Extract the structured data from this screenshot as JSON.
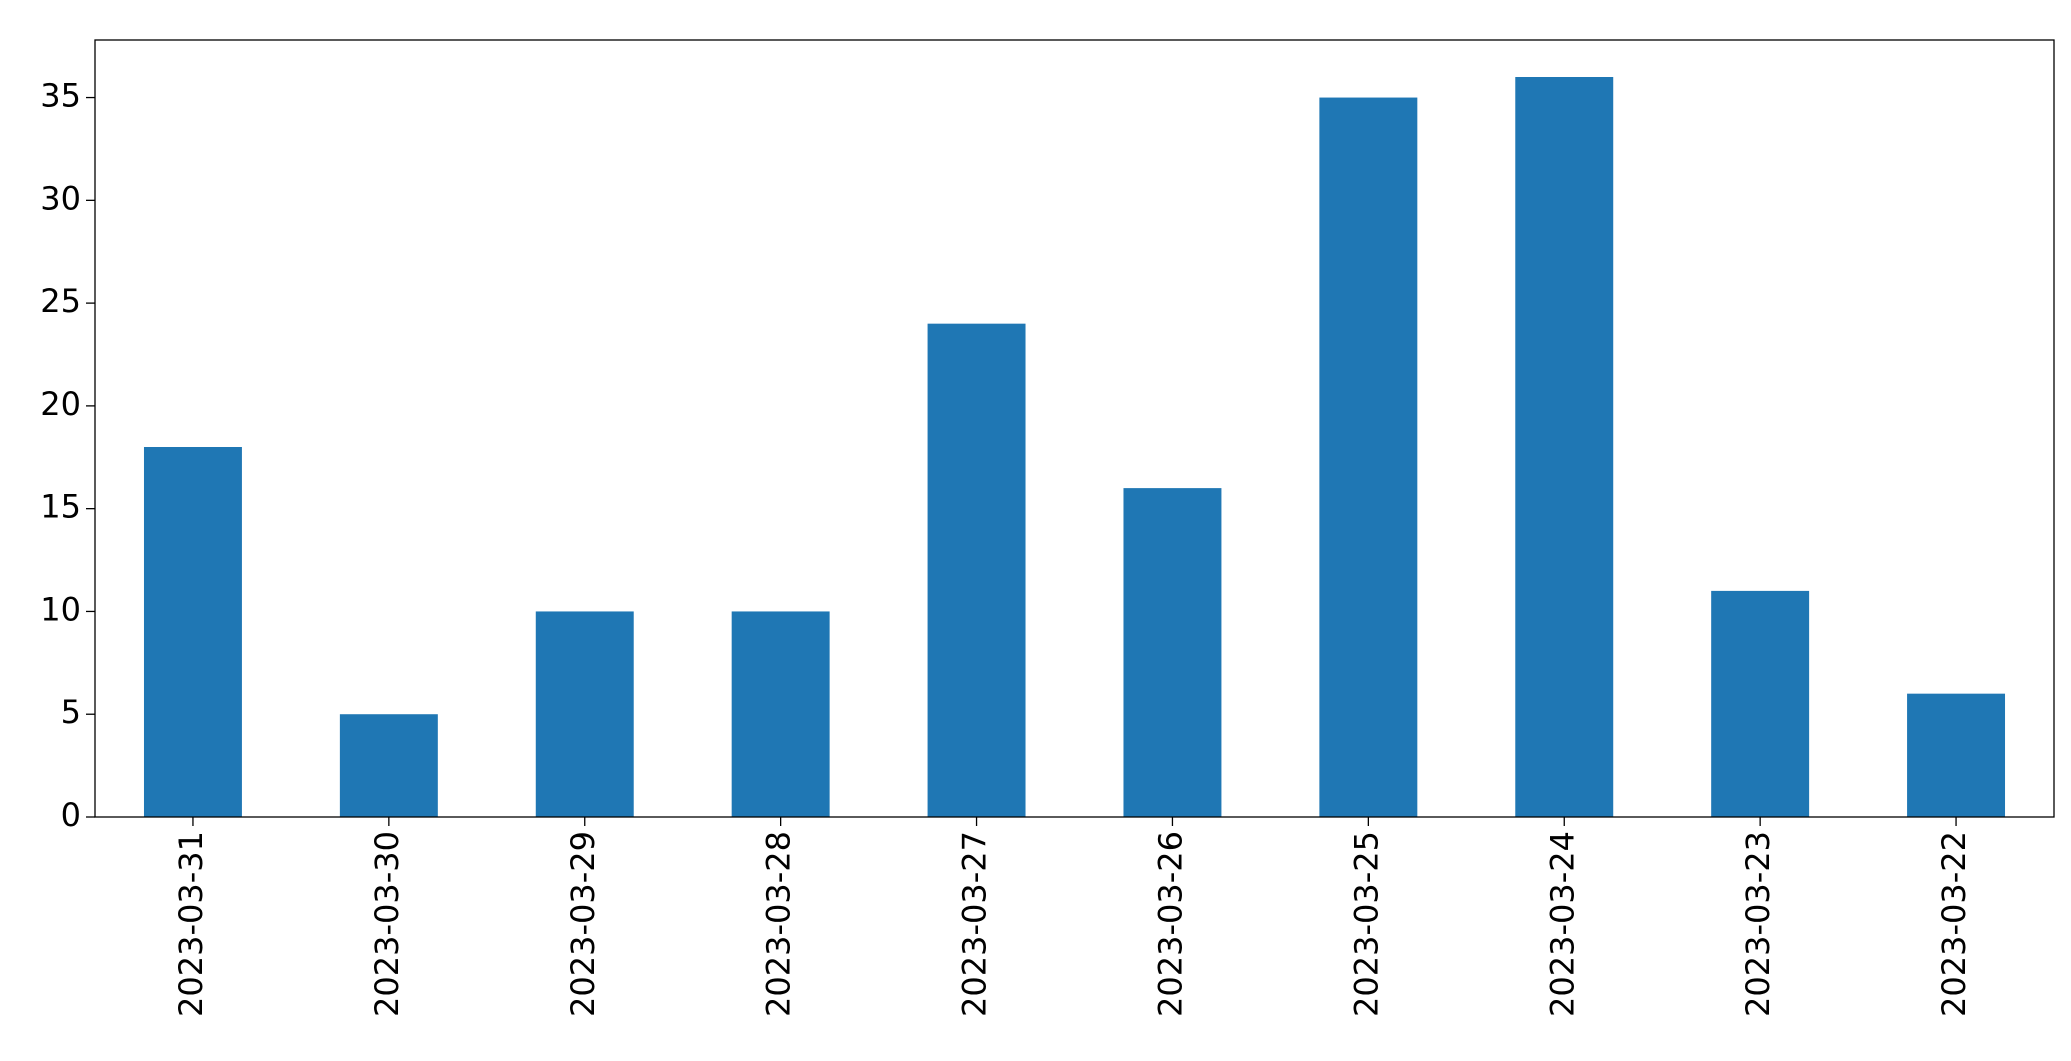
{
  "chart_data": {
    "type": "bar",
    "categories": [
      "2023-03-31",
      "2023-03-30",
      "2023-03-29",
      "2023-03-28",
      "2023-03-27",
      "2023-03-26",
      "2023-03-25",
      "2023-03-24",
      "2023-03-23",
      "2023-03-22"
    ],
    "values": [
      18,
      5,
      10,
      10,
      24,
      16,
      35,
      36,
      11,
      6
    ],
    "color": "#1f77b4",
    "ylim": [
      0,
      37.8
    ],
    "yticks": [
      0,
      5,
      10,
      15,
      20,
      25,
      30,
      35
    ],
    "grid": false
  }
}
